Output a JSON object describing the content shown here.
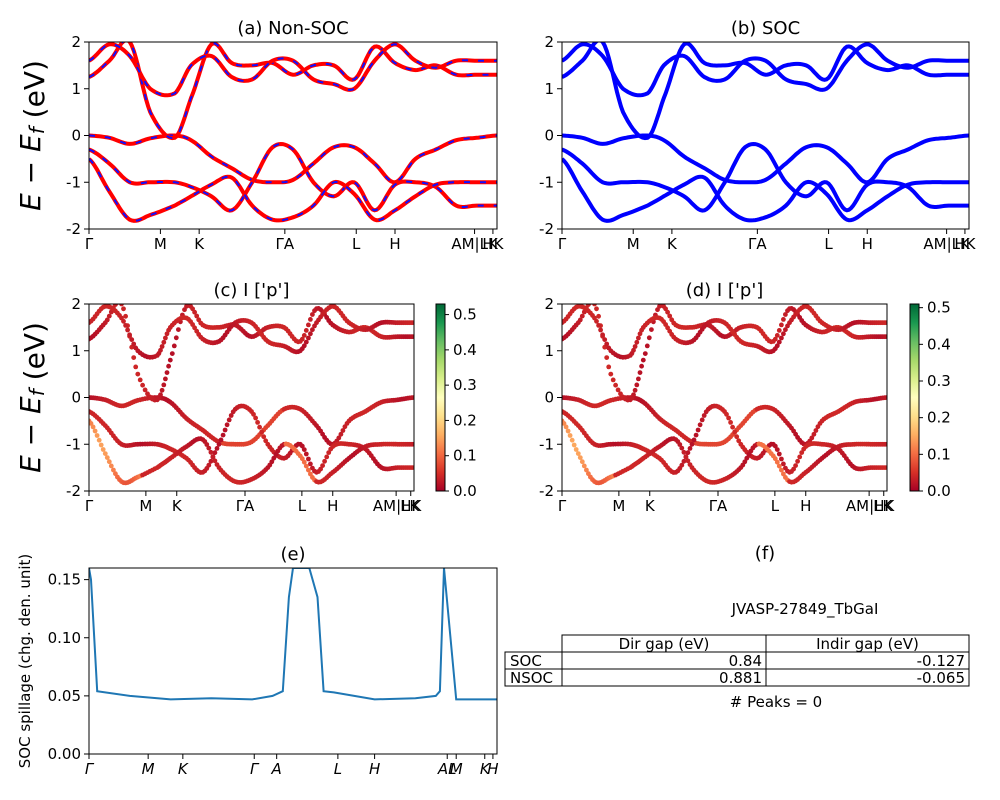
{
  "chart_data": [
    {
      "id": "a",
      "type": "line",
      "title": "(a) Non-SOC",
      "ylabel": "E − E_f (eV)",
      "ylim": [
        -2,
        2
      ],
      "yticks": [
        -2,
        -1,
        0,
        1,
        2
      ],
      "xticks": [
        "Γ",
        "M",
        "K",
        "ΓA",
        "L",
        "H",
        "AM|LK",
        "HK"
      ],
      "series": [
        {
          "style": "red solid with blue dashes",
          "x": [
            0,
            0.05,
            0.1,
            0.15,
            0.21,
            0.25,
            0.3,
            0.35,
            0.4,
            0.45,
            0.5,
            0.55,
            0.6,
            0.65,
            0.7,
            0.75,
            0.8,
            0.85,
            0.9,
            0.95,
            1
          ],
          "y": [
            0,
            -0.05,
            -0.18,
            -0.06,
            0.0,
            -0.1,
            -0.45,
            -0.7,
            -0.95,
            -1.0,
            -0.95,
            -0.6,
            -0.25,
            -0.25,
            -0.6,
            -1.0,
            -0.5,
            -0.3,
            -0.1,
            -0.05,
            0
          ]
        },
        {
          "style": "red solid with blue dashes",
          "x": [
            0,
            0.05,
            0.1,
            0.15,
            0.21,
            0.25,
            0.3,
            0.35,
            0.4,
            0.45,
            0.5,
            0.55,
            0.6,
            0.65,
            0.7,
            0.75,
            0.8,
            0.85,
            0.9,
            0.95,
            1
          ],
          "y": [
            -0.3,
            -0.6,
            -1.0,
            -1.0,
            -1.0,
            -1.1,
            -1.3,
            -1.6,
            -1.0,
            -0.25,
            -0.3,
            -1.0,
            -1.3,
            -1.0,
            -1.6,
            -1.05,
            -1.0,
            -1.1,
            -1.5,
            -1.5,
            -1.5
          ]
        },
        {
          "style": "red solid with blue dashes",
          "x": [
            0,
            0.05,
            0.1,
            0.15,
            0.21,
            0.25,
            0.3,
            0.35,
            0.4,
            0.45,
            0.5,
            0.55,
            0.6,
            0.65,
            0.7,
            0.75,
            0.8,
            0.85,
            0.9,
            0.95,
            1
          ],
          "y": [
            -0.5,
            -1.2,
            -1.8,
            -1.7,
            -1.5,
            -1.3,
            -1.05,
            -0.9,
            -1.5,
            -1.8,
            -1.75,
            -1.5,
            -1.0,
            -1.25,
            -1.8,
            -1.6,
            -1.3,
            -1.05,
            -1.0,
            -1.0,
            -1.0
          ]
        },
        {
          "style": "red solid with blue dashes",
          "x": [
            0,
            0.05,
            0.1,
            0.15,
            0.21,
            0.25,
            0.3,
            0.35,
            0.4,
            0.45,
            0.5,
            0.55,
            0.6,
            0.65,
            0.7,
            0.75,
            0.8,
            0.85,
            0.9,
            0.95,
            1
          ],
          "y": [
            1.25,
            1.6,
            2.0,
            0.5,
            -0.05,
            0.8,
            1.95,
            1.55,
            1.5,
            1.55,
            1.3,
            1.5,
            1.5,
            1.2,
            1.9,
            1.55,
            1.4,
            1.5,
            1.3,
            1.3,
            1.3
          ]
        },
        {
          "style": "red solid with blue dashes",
          "x": [
            0,
            0.05,
            0.1,
            0.15,
            0.21,
            0.25,
            0.3,
            0.35,
            0.4,
            0.45,
            0.5,
            0.55,
            0.6,
            0.65,
            0.7,
            0.75,
            0.8,
            0.85,
            0.9,
            0.95,
            1
          ],
          "y": [
            1.6,
            1.95,
            1.7,
            1.0,
            0.9,
            1.5,
            1.7,
            1.25,
            1.2,
            1.6,
            1.6,
            1.2,
            1.1,
            1.0,
            1.6,
            1.95,
            1.6,
            1.45,
            1.6,
            1.6,
            1.6
          ]
        }
      ]
    },
    {
      "id": "b",
      "type": "line",
      "title": "(b) SOC",
      "ylim": [
        -2,
        2
      ],
      "yticks": [
        -2,
        -1,
        0,
        1,
        2
      ],
      "xticks": [
        "Γ",
        "M",
        "K",
        "ΓA",
        "L",
        "H",
        "AM|LK",
        "HK"
      ],
      "series": [
        {
          "style": "blue",
          "x": [
            0,
            0.05,
            0.1,
            0.15,
            0.21,
            0.25,
            0.3,
            0.35,
            0.4,
            0.45,
            0.5,
            0.55,
            0.6,
            0.65,
            0.7,
            0.75,
            0.8,
            0.85,
            0.9,
            0.95,
            1
          ],
          "y": [
            0,
            -0.05,
            -0.18,
            -0.06,
            0.0,
            -0.1,
            -0.45,
            -0.7,
            -0.95,
            -1.0,
            -0.95,
            -0.6,
            -0.25,
            -0.25,
            -0.6,
            -1.0,
            -0.5,
            -0.3,
            -0.1,
            -0.05,
            0
          ]
        },
        {
          "style": "blue",
          "x": [
            0,
            0.05,
            0.1,
            0.15,
            0.21,
            0.25,
            0.3,
            0.35,
            0.4,
            0.45,
            0.5,
            0.55,
            0.6,
            0.65,
            0.7,
            0.75,
            0.8,
            0.85,
            0.9,
            0.95,
            1
          ],
          "y": [
            -0.3,
            -0.6,
            -1.0,
            -1.0,
            -1.0,
            -1.1,
            -1.3,
            -1.6,
            -1.0,
            -0.25,
            -0.3,
            -1.0,
            -1.3,
            -1.0,
            -1.6,
            -1.05,
            -1.0,
            -1.1,
            -1.5,
            -1.5,
            -1.5
          ]
        },
        {
          "style": "blue",
          "x": [
            0,
            0.05,
            0.1,
            0.15,
            0.21,
            0.25,
            0.3,
            0.35,
            0.4,
            0.45,
            0.5,
            0.55,
            0.6,
            0.65,
            0.7,
            0.75,
            0.8,
            0.85,
            0.9,
            0.95,
            1
          ],
          "y": [
            -0.5,
            -1.2,
            -1.8,
            -1.7,
            -1.5,
            -1.3,
            -1.05,
            -0.9,
            -1.5,
            -1.8,
            -1.75,
            -1.5,
            -1.0,
            -1.25,
            -1.8,
            -1.6,
            -1.3,
            -1.05,
            -1.0,
            -1.0,
            -1.0
          ]
        },
        {
          "style": "blue",
          "x": [
            0,
            0.05,
            0.1,
            0.15,
            0.21,
            0.25,
            0.3,
            0.35,
            0.4,
            0.45,
            0.5,
            0.55,
            0.6,
            0.65,
            0.7,
            0.75,
            0.8,
            0.85,
            0.9,
            0.95,
            1
          ],
          "y": [
            1.25,
            1.6,
            2.0,
            0.5,
            -0.05,
            0.8,
            1.95,
            1.55,
            1.5,
            1.55,
            1.3,
            1.5,
            1.5,
            1.2,
            1.9,
            1.55,
            1.4,
            1.5,
            1.3,
            1.3,
            1.3
          ]
        },
        {
          "style": "blue",
          "x": [
            0,
            0.05,
            0.1,
            0.15,
            0.21,
            0.25,
            0.3,
            0.35,
            0.4,
            0.45,
            0.5,
            0.55,
            0.6,
            0.65,
            0.7,
            0.75,
            0.8,
            0.85,
            0.9,
            0.95,
            1
          ],
          "y": [
            1.6,
            1.95,
            1.7,
            1.0,
            0.9,
            1.5,
            1.7,
            1.25,
            1.2,
            1.6,
            1.6,
            1.2,
            1.1,
            1.0,
            1.6,
            1.95,
            1.6,
            1.45,
            1.6,
            1.6,
            1.6
          ]
        }
      ]
    },
    {
      "id": "c",
      "type": "scatter",
      "title": "(c)  I ['p']",
      "ylabel": "E − E_f (eV)",
      "ylim": [
        -2,
        2
      ],
      "yticks": [
        -2,
        -1,
        0,
        1,
        2
      ],
      "xticks": [
        "Γ",
        "M",
        "K",
        "ΓA",
        "L",
        "H",
        "AM|LK",
        "HK"
      ],
      "colorbar": {
        "colormap": "RdYlGn",
        "range": [
          0,
          0.53
        ],
        "ticks": [
          "0.0",
          "0.1",
          "0.2",
          "0.3",
          "0.4",
          "0.5"
        ]
      },
      "note": "points colored by I ['p'] weight; same band paths as (a)"
    },
    {
      "id": "d",
      "type": "scatter",
      "title": "(d) I ['p']",
      "ylim": [
        -2,
        2
      ],
      "yticks": [
        -2,
        -1,
        0,
        1,
        2
      ],
      "xticks": [
        "Γ",
        "M",
        "K",
        "ΓA",
        "L",
        "H",
        "AM|LK",
        "HK"
      ],
      "colorbar": {
        "colormap": "RdYlGn",
        "range": [
          0,
          0.51
        ],
        "ticks": [
          "0.0",
          "0.1",
          "0.2",
          "0.3",
          "0.4",
          "0.5"
        ]
      },
      "note": "points colored by I ['p'] weight; same band paths as (b)"
    },
    {
      "id": "e",
      "type": "line",
      "title": "(e)",
      "ylabel": "SOC spillage (chg. den. unit)",
      "ylim": [
        0,
        0.16
      ],
      "yticks": [
        "0.00",
        "0.05",
        "0.10",
        "0.15"
      ],
      "xticks": [
        "Γ",
        "M",
        "K",
        "Γ",
        "A",
        "L",
        "H",
        "AL",
        "M",
        "K",
        "H"
      ],
      "series": [
        {
          "name": "",
          "x": [
            0,
            0.005,
            0.02,
            0.1,
            0.2,
            0.3,
            0.4,
            0.45,
            0.475,
            0.49,
            0.5,
            0.54,
            0.56,
            0.575,
            0.6,
            0.7,
            0.8,
            0.85,
            0.86,
            0.87,
            0.9,
            0.95,
            1
          ],
          "y": [
            0.16,
            0.15,
            0.054,
            0.05,
            0.047,
            0.048,
            0.047,
            0.05,
            0.054,
            0.135,
            0.16,
            0.16,
            0.135,
            0.054,
            0.053,
            0.047,
            0.048,
            0.05,
            0.054,
            0.16,
            0.047,
            0.047,
            0.047
          ]
        }
      ]
    },
    {
      "id": "f",
      "type": "table",
      "title": "(f)",
      "caption": "JVASP-27849_TbGaI",
      "columns": [
        "",
        "Dir gap (eV)",
        "Indir gap (eV)"
      ],
      "rows": [
        [
          "SOC",
          "0.84",
          "-0.127"
        ],
        [
          "NSOC",
          "0.881",
          "-0.065"
        ]
      ],
      "footer": "# Peaks = 0"
    }
  ]
}
